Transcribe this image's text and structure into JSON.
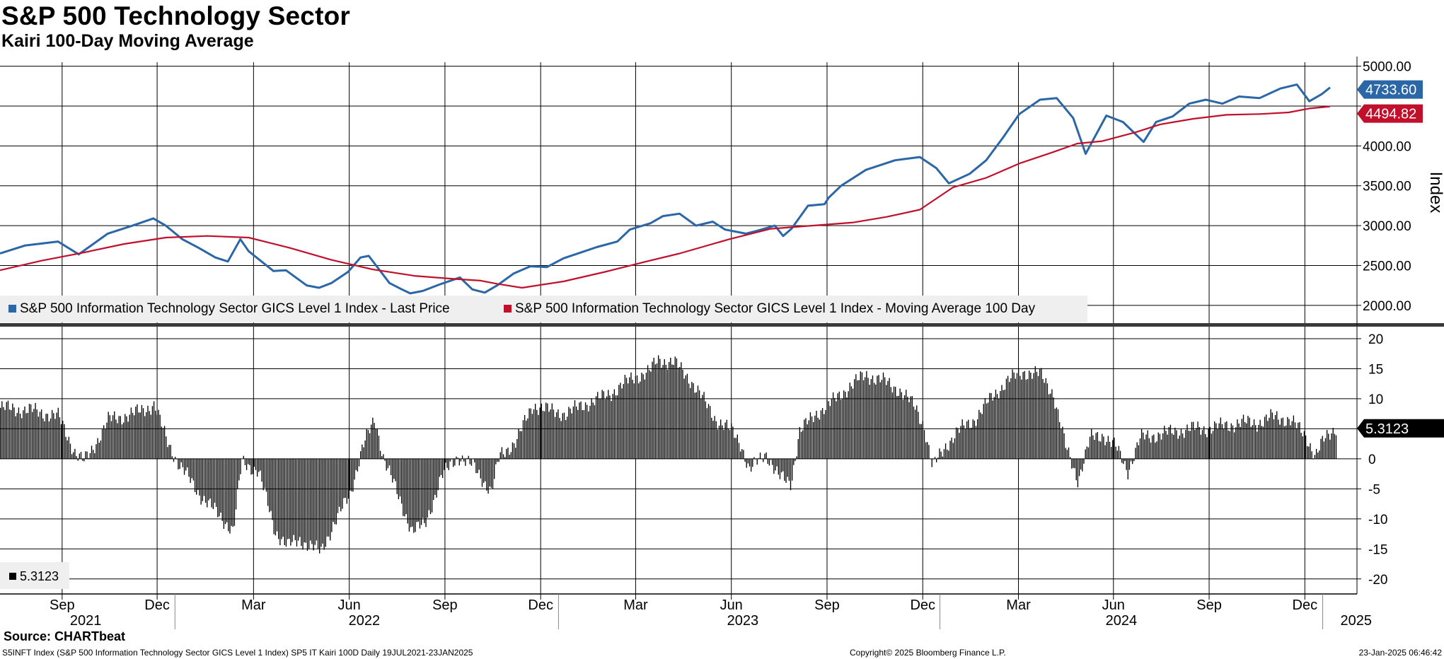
{
  "title": "S&P 500 Technology Sector",
  "subtitle": "Kairi 100-Day Moving Average",
  "source": "Source: CHARTbeat",
  "footer": {
    "left": "S5INFT Index (S&P 500 Information Technology Sector GICS Level 1 Index) SP5 IT Kairi 100D  Daily 19JUL2021-23JAN2025",
    "middle": "Copyright© 2025 Bloomberg Finance L.P.",
    "right": "23-Jan-2025 06:46:42"
  },
  "colors": {
    "price": "#2b67a6",
    "ma": "#c0102c",
    "kairi": "#000000",
    "grid": "#000000"
  },
  "chart_data": [
    {
      "type": "line",
      "title": "S&P 500 Technology Sector",
      "ylabel": "Index",
      "ylim": [
        1750,
        5050
      ],
      "yticks": [
        2000,
        2500,
        3000,
        3500,
        4000,
        4500,
        5000
      ],
      "ytick_labels": [
        "2000.00",
        "2500.00",
        "3000.00",
        "3500.00",
        "4000.00",
        "",
        "5000.00"
      ],
      "legend": [
        {
          "label": "S&P 500 Information Technology Sector GICS Level 1 Index - Last Price",
          "color": "#2b67a6"
        },
        {
          "label": "S&P 500 Information Technology Sector GICS Level 1 Index - Moving Average 100 Day",
          "color": "#c0102c"
        }
      ],
      "last_values": [
        {
          "label": "4733.60",
          "value": 4733.6,
          "color": "#2b67a6"
        },
        {
          "label": "4494.82",
          "value": 4494.82,
          "color": "#c0102c"
        }
      ],
      "series": [
        {
          "name": "Last Price",
          "values": [
            [
              0.0,
              2650
            ],
            [
              0.3,
              2750
            ],
            [
              0.7,
              2800
            ],
            [
              0.95,
              2640
            ],
            [
              1.3,
              2900
            ],
            [
              1.6,
              3000
            ],
            [
              1.85,
              3090
            ],
            [
              2.0,
              3000
            ],
            [
              2.2,
              2830
            ],
            [
              2.4,
              2720
            ],
            [
              2.6,
              2600
            ],
            [
              2.75,
              2550
            ],
            [
              2.9,
              2830
            ],
            [
              3.0,
              2680
            ],
            [
              3.3,
              2430
            ],
            [
              3.45,
              2440
            ],
            [
              3.7,
              2250
            ],
            [
              3.85,
              2220
            ],
            [
              4.0,
              2280
            ],
            [
              4.2,
              2420
            ],
            [
              4.35,
              2600
            ],
            [
              4.45,
              2620
            ],
            [
              4.7,
              2280
            ],
            [
              4.85,
              2200
            ],
            [
              4.95,
              2150
            ],
            [
              5.1,
              2180
            ],
            [
              5.3,
              2260
            ],
            [
              5.55,
              2350
            ],
            [
              5.7,
              2200
            ],
            [
              5.85,
              2160
            ],
            [
              6.0,
              2250
            ],
            [
              6.2,
              2400
            ],
            [
              6.4,
              2490
            ],
            [
              6.6,
              2480
            ],
            [
              6.8,
              2590
            ],
            [
              7.0,
              2660
            ],
            [
              7.2,
              2730
            ],
            [
              7.45,
              2800
            ],
            [
              7.6,
              2950
            ],
            [
              7.85,
              3030
            ],
            [
              8.0,
              3120
            ],
            [
              8.2,
              3150
            ],
            [
              8.4,
              3000
            ],
            [
              8.6,
              3050
            ],
            [
              8.75,
              2950
            ],
            [
              9.0,
              2900
            ],
            [
              9.15,
              2940
            ],
            [
              9.35,
              3000
            ],
            [
              9.45,
              2870
            ],
            [
              9.55,
              2960
            ],
            [
              9.75,
              3250
            ],
            [
              9.95,
              3270
            ],
            [
              10.0,
              3350
            ],
            [
              10.15,
              3500
            ],
            [
              10.45,
              3700
            ],
            [
              10.8,
              3820
            ],
            [
              11.1,
              3860
            ],
            [
              11.3,
              3720
            ],
            [
              11.45,
              3530
            ],
            [
              11.7,
              3650
            ],
            [
              11.9,
              3820
            ],
            [
              12.1,
              4100
            ],
            [
              12.3,
              4400
            ],
            [
              12.55,
              4580
            ],
            [
              12.75,
              4600
            ],
            [
              12.95,
              4350
            ],
            [
              13.1,
              3900
            ],
            [
              13.35,
              4380
            ],
            [
              13.55,
              4300
            ],
            [
              13.8,
              4050
            ],
            [
              13.95,
              4300
            ],
            [
              14.15,
              4370
            ],
            [
              14.35,
              4530
            ],
            [
              14.55,
              4580
            ],
            [
              14.75,
              4530
            ],
            [
              14.95,
              4620
            ],
            [
              15.2,
              4600
            ],
            [
              15.45,
              4720
            ],
            [
              15.65,
              4770
            ],
            [
              15.8,
              4560
            ],
            [
              15.95,
              4650
            ],
            [
              16.05,
              4733.6
            ]
          ]
        },
        {
          "name": "Moving Average 100 Day",
          "values": [
            [
              0.0,
              2440
            ],
            [
              0.5,
              2560
            ],
            [
              1.0,
              2660
            ],
            [
              1.5,
              2770
            ],
            [
              2.0,
              2850
            ],
            [
              2.5,
              2870
            ],
            [
              3.0,
              2850
            ],
            [
              3.5,
              2720
            ],
            [
              4.0,
              2570
            ],
            [
              4.5,
              2450
            ],
            [
              5.0,
              2370
            ],
            [
              5.5,
              2330
            ],
            [
              5.8,
              2310
            ],
            [
              6.0,
              2270
            ],
            [
              6.3,
              2220
            ],
            [
              6.8,
              2300
            ],
            [
              7.3,
              2420
            ],
            [
              7.8,
              2550
            ],
            [
              8.2,
              2650
            ],
            [
              8.8,
              2830
            ],
            [
              9.3,
              2960
            ],
            [
              9.8,
              3000
            ],
            [
              10.3,
              3040
            ],
            [
              10.7,
              3110
            ],
            [
              11.1,
              3200
            ],
            [
              11.5,
              3480
            ],
            [
              11.9,
              3600
            ],
            [
              12.3,
              3780
            ],
            [
              12.7,
              3920
            ],
            [
              13.0,
              4030
            ],
            [
              13.3,
              4060
            ],
            [
              13.7,
              4170
            ],
            [
              14.0,
              4270
            ],
            [
              14.4,
              4340
            ],
            [
              14.8,
              4390
            ],
            [
              15.2,
              4400
            ],
            [
              15.55,
              4420
            ],
            [
              15.8,
              4470
            ],
            [
              16.05,
              4494.82
            ]
          ]
        }
      ]
    },
    {
      "type": "bar",
      "title": "Kairi 100-Day Moving Average",
      "ylim": [
        -22.5,
        22
      ],
      "yticks": [
        -20,
        -15,
        -10,
        -5,
        0,
        5,
        10,
        15,
        20
      ],
      "ytick_labels": [
        "-20",
        "-15",
        "-10",
        "-5",
        "0",
        "5",
        "10",
        "15",
        "20"
      ],
      "legend": [
        {
          "label": "5.3123",
          "color": "#000000"
        }
      ],
      "last_values": [
        {
          "label": "5.3123",
          "value": 5.3123,
          "color": "#000000"
        }
      ],
      "series": [
        {
          "name": "Kairi 100D",
          "values": [
            [
              0.0,
              8.5
            ],
            [
              0.4,
              8.0
            ],
            [
              0.7,
              7.0
            ],
            [
              0.9,
              1.0
            ],
            [
              1.0,
              -0.5
            ],
            [
              1.1,
              1.5
            ],
            [
              1.3,
              6.5
            ],
            [
              1.6,
              7.5
            ],
            [
              1.85,
              9.0
            ],
            [
              2.0,
              3.0
            ],
            [
              2.15,
              -1.0
            ],
            [
              2.4,
              -6.0
            ],
            [
              2.6,
              -9.0
            ],
            [
              2.8,
              -12.0
            ],
            [
              2.9,
              -0.5
            ],
            [
              3.1,
              -2.0
            ],
            [
              3.3,
              -12.0
            ],
            [
              3.45,
              -14.5
            ],
            [
              3.6,
              -13.5
            ],
            [
              3.85,
              -15.5
            ],
            [
              4.0,
              -11.0
            ],
            [
              4.2,
              -6.0
            ],
            [
              4.35,
              2.0
            ],
            [
              4.5,
              6.5
            ],
            [
              4.6,
              0.5
            ],
            [
              4.8,
              -7.0
            ],
            [
              4.95,
              -12.0
            ],
            [
              5.1,
              -11.0
            ],
            [
              5.3,
              -3.0
            ],
            [
              5.5,
              0.5
            ],
            [
              5.7,
              -1.5
            ],
            [
              5.9,
              -5.5
            ],
            [
              6.0,
              0.5
            ],
            [
              6.2,
              3.0
            ],
            [
              6.4,
              9.0
            ],
            [
              6.6,
              8.0
            ],
            [
              6.8,
              7.5
            ],
            [
              7.0,
              9.0
            ],
            [
              7.2,
              10.0
            ],
            [
              7.4,
              11.5
            ],
            [
              7.6,
              13.5
            ],
            [
              7.8,
              14.5
            ],
            [
              7.9,
              16.5
            ],
            [
              8.1,
              16.0
            ],
            [
              8.3,
              13.0
            ],
            [
              8.6,
              6.5
            ],
            [
              8.8,
              4.5
            ],
            [
              8.9,
              2.5
            ],
            [
              9.0,
              -2.0
            ],
            [
              9.2,
              1.0
            ],
            [
              9.35,
              -3.0
            ],
            [
              9.5,
              -4.0
            ],
            [
              9.6,
              4.5
            ],
            [
              9.8,
              7.5
            ],
            [
              10.0,
              9.5
            ],
            [
              10.2,
              12.0
            ],
            [
              10.4,
              14.0
            ],
            [
              10.6,
              13.0
            ],
            [
              10.8,
              11.5
            ],
            [
              11.0,
              8.5
            ],
            [
              11.1,
              5.5
            ],
            [
              11.2,
              -1.5
            ],
            [
              11.35,
              2.0
            ],
            [
              11.5,
              4.5
            ],
            [
              11.7,
              6.5
            ],
            [
              11.9,
              10.0
            ],
            [
              12.1,
              13.0
            ],
            [
              12.3,
              14.5
            ],
            [
              12.5,
              14.0
            ],
            [
              12.65,
              11.0
            ],
            [
              12.8,
              2.0
            ],
            [
              12.95,
              -3.5
            ],
            [
              13.1,
              3.5
            ],
            [
              13.25,
              4.0
            ],
            [
              13.4,
              2.0
            ],
            [
              13.55,
              -2.0
            ],
            [
              13.7,
              3.5
            ],
            [
              13.9,
              4.0
            ],
            [
              14.1,
              4.5
            ],
            [
              14.3,
              5.0
            ],
            [
              14.5,
              5.0
            ],
            [
              14.7,
              5.5
            ],
            [
              14.9,
              6.0
            ],
            [
              15.1,
              6.0
            ],
            [
              15.3,
              7.0
            ],
            [
              15.5,
              6.5
            ],
            [
              15.7,
              3.5
            ],
            [
              15.8,
              0.5
            ],
            [
              15.9,
              3.0
            ],
            [
              16.05,
              5.3123
            ]
          ]
        }
      ]
    }
  ],
  "x_axis": {
    "months": [
      {
        "label": "Sep",
        "pos": 0.87
      },
      {
        "label": "Dec",
        "pos": 2.2
      },
      {
        "label": "Mar",
        "pos": 3.55
      },
      {
        "label": "Jun",
        "pos": 4.89
      },
      {
        "label": "Sep",
        "pos": 6.23
      },
      {
        "label": "Dec",
        "pos": 7.57
      },
      {
        "label": "Mar",
        "pos": 8.9
      },
      {
        "label": "Jun",
        "pos": 10.24
      },
      {
        "label": "Sep",
        "pos": 11.58
      },
      {
        "label": "Dec",
        "pos": 12.92
      },
      {
        "label": "Mar",
        "pos": 14.26
      },
      {
        "label": "Jun",
        "pos": 15.59
      },
      {
        "label": "Sep",
        "pos": 16.93
      },
      {
        "label": "Dec",
        "pos": 18.27
      }
    ],
    "years": [
      {
        "label": "2021",
        "pos": 1.2
      },
      {
        "label": "2022",
        "pos": 5.1
      },
      {
        "label": "2023",
        "pos": 10.4
      },
      {
        "label": "2024",
        "pos": 15.7
      },
      {
        "label": "2025",
        "pos": 18.75
      }
    ],
    "year_dividers": [
      2.45,
      7.82,
      13.16,
      18.52
    ]
  }
}
